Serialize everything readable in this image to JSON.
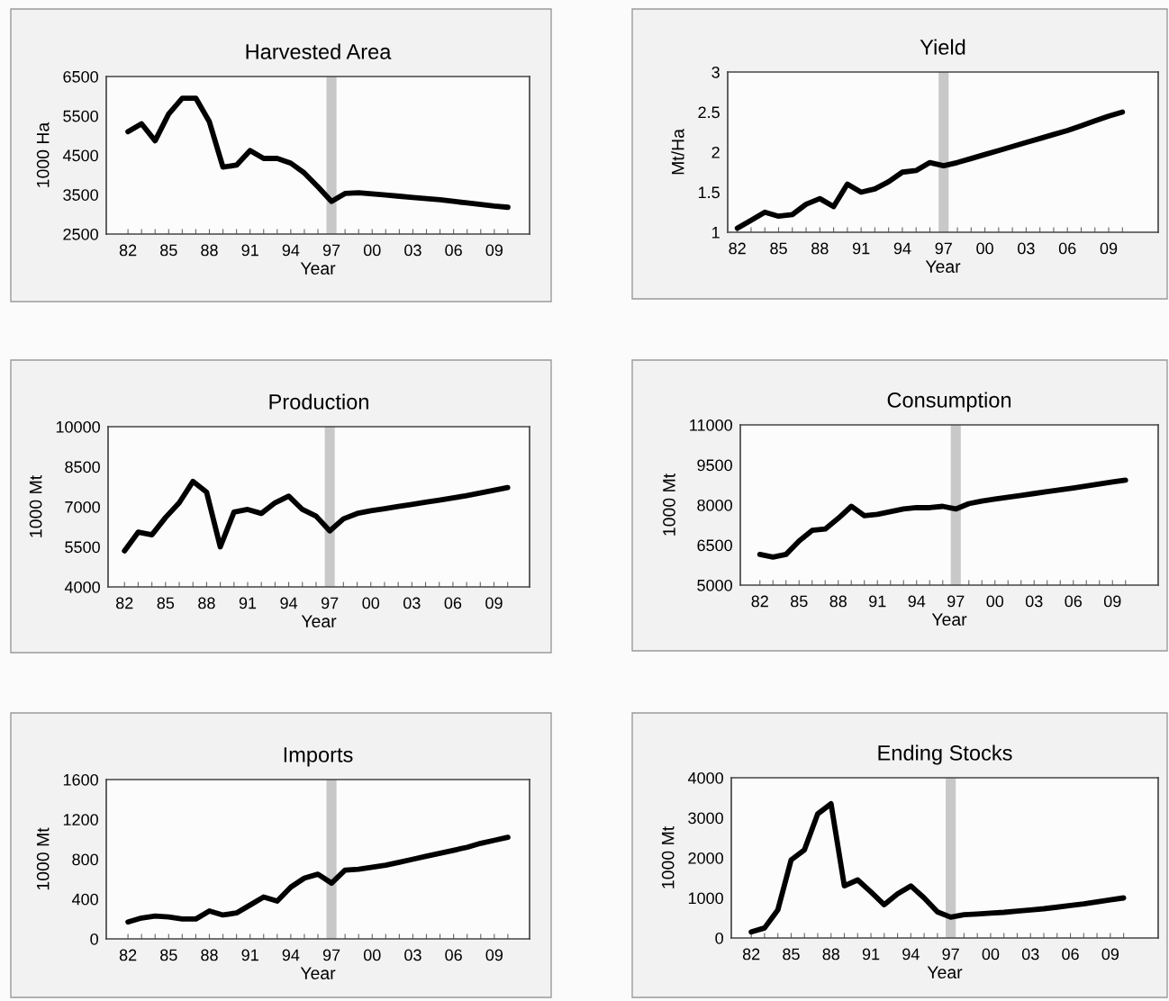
{
  "chart_data": [
    {
      "type": "line",
      "title": "Harvested Area",
      "xlabel": "Year",
      "ylabel": "1000 Ha",
      "x": [
        1982,
        1983,
        1984,
        1985,
        1986,
        1987,
        1988,
        1989,
        1990,
        1991,
        1992,
        1993,
        1994,
        1995,
        1996,
        1997,
        1998,
        1999,
        2000,
        2001,
        2002,
        2003,
        2004,
        2005,
        2006,
        2007,
        2008,
        2009,
        2010
      ],
      "series": [
        {
          "color": "#000000",
          "values": [
            5100,
            5300,
            4870,
            5550,
            5950,
            5950,
            5350,
            4200,
            4250,
            4620,
            4420,
            4420,
            4300,
            4050,
            3700,
            3330,
            3530,
            3550,
            3520,
            3490,
            3460,
            3430,
            3400,
            3370,
            3330,
            3290,
            3250,
            3210,
            3180
          ]
        }
      ],
      "xlim": [
        1980.4,
        2011.6
      ],
      "xticks": [
        {
          "value": 1982,
          "label": "82"
        },
        {
          "value": 1983,
          "label": null
        },
        {
          "value": 1984,
          "label": null
        },
        {
          "value": 1985,
          "label": "85"
        },
        {
          "value": 1986,
          "label": null
        },
        {
          "value": 1987,
          "label": null
        },
        {
          "value": 1988,
          "label": "88"
        },
        {
          "value": 1989,
          "label": null
        },
        {
          "value": 1990,
          "label": null
        },
        {
          "value": 1991,
          "label": "91"
        },
        {
          "value": 1992,
          "label": null
        },
        {
          "value": 1993,
          "label": null
        },
        {
          "value": 1994,
          "label": "94"
        },
        {
          "value": 1995,
          "label": null
        },
        {
          "value": 1996,
          "label": null
        },
        {
          "value": 1997,
          "label": "97"
        },
        {
          "value": 1998,
          "label": null
        },
        {
          "value": 1999,
          "label": null
        },
        {
          "value": 2000,
          "label": "00"
        },
        {
          "value": 2001,
          "label": null
        },
        {
          "value": 2002,
          "label": null
        },
        {
          "value": 2003,
          "label": "03"
        },
        {
          "value": 2004,
          "label": null
        },
        {
          "value": 2005,
          "label": null
        },
        {
          "value": 2006,
          "label": "06"
        },
        {
          "value": 2007,
          "label": null
        },
        {
          "value": 2008,
          "label": null
        },
        {
          "value": 2009,
          "label": "09"
        },
        {
          "value": 2010,
          "label": null
        }
      ],
      "ylim": [
        2500,
        6500
      ],
      "yticks": [
        2500,
        3500,
        4500,
        5500,
        6500
      ],
      "ref_lines": [
        {
          "axis": "x",
          "value": 1997,
          "color": "#c8c8c8"
        }
      ]
    },
    {
      "type": "line",
      "title": "Yield",
      "xlabel": "Year",
      "ylabel": "Mt/Ha",
      "x": [
        1982,
        1983,
        1984,
        1985,
        1986,
        1987,
        1988,
        1989,
        1990,
        1991,
        1992,
        1993,
        1994,
        1995,
        1996,
        1997,
        1998,
        1999,
        2000,
        2001,
        2002,
        2003,
        2004,
        2005,
        2006,
        2007,
        2008,
        2009,
        2010
      ],
      "series": [
        {
          "color": "#000000",
          "values": [
            1.05,
            1.15,
            1.25,
            1.2,
            1.22,
            1.35,
            1.42,
            1.32,
            1.6,
            1.5,
            1.54,
            1.63,
            1.75,
            1.77,
            1.87,
            1.83,
            1.87,
            1.92,
            1.97,
            2.02,
            2.07,
            2.12,
            2.17,
            2.22,
            2.27,
            2.33,
            2.39,
            2.45,
            2.5
          ]
        }
      ],
      "xlim": [
        1981.3,
        2012.6
      ],
      "xticks": [
        {
          "value": 1982,
          "label": "82"
        },
        {
          "value": 1983,
          "label": null
        },
        {
          "value": 1984,
          "label": null
        },
        {
          "value": 1985,
          "label": "85"
        },
        {
          "value": 1986,
          "label": null
        },
        {
          "value": 1987,
          "label": null
        },
        {
          "value": 1988,
          "label": "88"
        },
        {
          "value": 1989,
          "label": null
        },
        {
          "value": 1990,
          "label": null
        },
        {
          "value": 1991,
          "label": "91"
        },
        {
          "value": 1992,
          "label": null
        },
        {
          "value": 1993,
          "label": null
        },
        {
          "value": 1994,
          "label": "94"
        },
        {
          "value": 1995,
          "label": null
        },
        {
          "value": 1996,
          "label": null
        },
        {
          "value": 1997,
          "label": "97"
        },
        {
          "value": 1998,
          "label": null
        },
        {
          "value": 1999,
          "label": null
        },
        {
          "value": 2000,
          "label": "00"
        },
        {
          "value": 2001,
          "label": null
        },
        {
          "value": 2002,
          "label": null
        },
        {
          "value": 2003,
          "label": "03"
        },
        {
          "value": 2004,
          "label": null
        },
        {
          "value": 2005,
          "label": null
        },
        {
          "value": 2006,
          "label": "06"
        },
        {
          "value": 2007,
          "label": null
        },
        {
          "value": 2008,
          "label": null
        },
        {
          "value": 2009,
          "label": "09"
        },
        {
          "value": 2010,
          "label": null
        }
      ],
      "ylim": [
        1,
        3
      ],
      "yticks": [
        1,
        1.5,
        2,
        2.5,
        3
      ],
      "ref_lines": [
        {
          "axis": "x",
          "value": 1997,
          "color": "#c8c8c8"
        }
      ]
    },
    {
      "type": "line",
      "title": "Production",
      "xlabel": "Year",
      "ylabel": "1000 Mt",
      "x": [
        1982,
        1983,
        1984,
        1985,
        1986,
        1987,
        1988,
        1989,
        1990,
        1991,
        1992,
        1993,
        1994,
        1995,
        1996,
        1997,
        1998,
        1999,
        2000,
        2001,
        2002,
        2003,
        2004,
        2005,
        2006,
        2007,
        2008,
        2009,
        2010
      ],
      "series": [
        {
          "color": "#000000",
          "values": [
            5350,
            6050,
            5950,
            6600,
            7150,
            7950,
            7550,
            5500,
            6800,
            6900,
            6750,
            7150,
            7400,
            6900,
            6650,
            6100,
            6550,
            6750,
            6850,
            6930,
            7010,
            7090,
            7170,
            7250,
            7330,
            7420,
            7520,
            7620,
            7720
          ]
        }
      ],
      "xlim": [
        1980.8,
        2011.6
      ],
      "xticks": [
        {
          "value": 1982,
          "label": "82"
        },
        {
          "value": 1983,
          "label": null
        },
        {
          "value": 1984,
          "label": null
        },
        {
          "value": 1985,
          "label": "85"
        },
        {
          "value": 1986,
          "label": null
        },
        {
          "value": 1987,
          "label": null
        },
        {
          "value": 1988,
          "label": "88"
        },
        {
          "value": 1989,
          "label": null
        },
        {
          "value": 1990,
          "label": null
        },
        {
          "value": 1991,
          "label": "91"
        },
        {
          "value": 1992,
          "label": null
        },
        {
          "value": 1993,
          "label": null
        },
        {
          "value": 1994,
          "label": "94"
        },
        {
          "value": 1995,
          "label": null
        },
        {
          "value": 1996,
          "label": null
        },
        {
          "value": 1997,
          "label": "97"
        },
        {
          "value": 1998,
          "label": null
        },
        {
          "value": 1999,
          "label": null
        },
        {
          "value": 2000,
          "label": "00"
        },
        {
          "value": 2001,
          "label": null
        },
        {
          "value": 2002,
          "label": null
        },
        {
          "value": 2003,
          "label": "03"
        },
        {
          "value": 2004,
          "label": null
        },
        {
          "value": 2005,
          "label": null
        },
        {
          "value": 2006,
          "label": "06"
        },
        {
          "value": 2007,
          "label": null
        },
        {
          "value": 2008,
          "label": null
        },
        {
          "value": 2009,
          "label": "09"
        },
        {
          "value": 2010,
          "label": null
        }
      ],
      "ylim": [
        4000,
        10000
      ],
      "yticks": [
        4000,
        5500,
        7000,
        8500,
        10000
      ],
      "ref_lines": [
        {
          "axis": "x",
          "value": 1997,
          "color": "#c8c8c8"
        }
      ]
    },
    {
      "type": "line",
      "title": "Consumption",
      "xlabel": "Year",
      "ylabel": "1000 Mt",
      "x": [
        1982,
        1983,
        1984,
        1985,
        1986,
        1987,
        1988,
        1989,
        1990,
        1991,
        1992,
        1993,
        1994,
        1995,
        1996,
        1997,
        1998,
        1999,
        2000,
        2001,
        2002,
        2003,
        2004,
        2005,
        2006,
        2007,
        2008,
        2009,
        2010
      ],
      "series": [
        {
          "color": "#000000",
          "values": [
            6150,
            6050,
            6150,
            6650,
            7050,
            7100,
            7500,
            7950,
            7600,
            7650,
            7750,
            7850,
            7900,
            7900,
            7950,
            7850,
            8050,
            8150,
            8220,
            8290,
            8360,
            8430,
            8500,
            8570,
            8640,
            8710,
            8790,
            8860,
            8930
          ]
        }
      ],
      "xlim": [
        1980.5,
        2012.5
      ],
      "xticks": [
        {
          "value": 1982,
          "label": "82"
        },
        {
          "value": 1983,
          "label": null
        },
        {
          "value": 1984,
          "label": null
        },
        {
          "value": 1985,
          "label": "85"
        },
        {
          "value": 1986,
          "label": null
        },
        {
          "value": 1987,
          "label": null
        },
        {
          "value": 1988,
          "label": "88"
        },
        {
          "value": 1989,
          "label": null
        },
        {
          "value": 1990,
          "label": null
        },
        {
          "value": 1991,
          "label": "91"
        },
        {
          "value": 1992,
          "label": null
        },
        {
          "value": 1993,
          "label": null
        },
        {
          "value": 1994,
          "label": "94"
        },
        {
          "value": 1995,
          "label": null
        },
        {
          "value": 1996,
          "label": null
        },
        {
          "value": 1997,
          "label": "97"
        },
        {
          "value": 1998,
          "label": null
        },
        {
          "value": 1999,
          "label": null
        },
        {
          "value": 2000,
          "label": "00"
        },
        {
          "value": 2001,
          "label": null
        },
        {
          "value": 2002,
          "label": null
        },
        {
          "value": 2003,
          "label": "03"
        },
        {
          "value": 2004,
          "label": null
        },
        {
          "value": 2005,
          "label": null
        },
        {
          "value": 2006,
          "label": "06"
        },
        {
          "value": 2007,
          "label": null
        },
        {
          "value": 2008,
          "label": null
        },
        {
          "value": 2009,
          "label": "09"
        },
        {
          "value": 2010,
          "label": null
        }
      ],
      "ylim": [
        5000,
        11000
      ],
      "yticks": [
        5000,
        6500,
        8000,
        9500,
        11000
      ],
      "ref_lines": [
        {
          "axis": "x",
          "value": 1997,
          "color": "#c8c8c8"
        }
      ]
    },
    {
      "type": "line",
      "title": "Imports",
      "xlabel": "Year",
      "ylabel": "1000 Mt",
      "x": [
        1982,
        1983,
        1984,
        1985,
        1986,
        1987,
        1988,
        1989,
        1990,
        1991,
        1992,
        1993,
        1994,
        1995,
        1996,
        1997,
        1998,
        1999,
        2000,
        2001,
        2002,
        2003,
        2004,
        2005,
        2006,
        2007,
        2008,
        2009,
        2010
      ],
      "series": [
        {
          "color": "#000000",
          "values": [
            170,
            210,
            230,
            220,
            200,
            200,
            280,
            240,
            260,
            340,
            420,
            380,
            520,
            610,
            650,
            560,
            690,
            700,
            720,
            740,
            770,
            800,
            830,
            860,
            890,
            920,
            960,
            990,
            1020
          ]
        }
      ],
      "xlim": [
        1980.4,
        2011.6
      ],
      "xticks": [
        {
          "value": 1982,
          "label": "82"
        },
        {
          "value": 1983,
          "label": null
        },
        {
          "value": 1984,
          "label": null
        },
        {
          "value": 1985,
          "label": "85"
        },
        {
          "value": 1986,
          "label": null
        },
        {
          "value": 1987,
          "label": null
        },
        {
          "value": 1988,
          "label": "88"
        },
        {
          "value": 1989,
          "label": null
        },
        {
          "value": 1990,
          "label": null
        },
        {
          "value": 1991,
          "label": "91"
        },
        {
          "value": 1992,
          "label": null
        },
        {
          "value": 1993,
          "label": null
        },
        {
          "value": 1994,
          "label": "94"
        },
        {
          "value": 1995,
          "label": null
        },
        {
          "value": 1996,
          "label": null
        },
        {
          "value": 1997,
          "label": "97"
        },
        {
          "value": 1998,
          "label": null
        },
        {
          "value": 1999,
          "label": null
        },
        {
          "value": 2000,
          "label": "00"
        },
        {
          "value": 2001,
          "label": null
        },
        {
          "value": 2002,
          "label": null
        },
        {
          "value": 2003,
          "label": "03"
        },
        {
          "value": 2004,
          "label": null
        },
        {
          "value": 2005,
          "label": null
        },
        {
          "value": 2006,
          "label": "06"
        },
        {
          "value": 2007,
          "label": null
        },
        {
          "value": 2008,
          "label": null
        },
        {
          "value": 2009,
          "label": "09"
        },
        {
          "value": 2010,
          "label": null
        }
      ],
      "ylim": [
        0,
        1600
      ],
      "yticks": [
        0,
        400,
        800,
        1200,
        1600
      ],
      "ref_lines": [
        {
          "axis": "x",
          "value": 1997,
          "color": "#c8c8c8"
        }
      ]
    },
    {
      "type": "line",
      "title": "Ending Stocks",
      "xlabel": "Year",
      "ylabel": "1000 Mt",
      "x": [
        1982,
        1983,
        1984,
        1985,
        1986,
        1987,
        1988,
        1989,
        1990,
        1991,
        1992,
        1993,
        1994,
        1995,
        1996,
        1997,
        1998,
        1999,
        2000,
        2001,
        2002,
        2003,
        2004,
        2005,
        2006,
        2007,
        2008,
        2009,
        2010
      ],
      "series": [
        {
          "color": "#000000",
          "values": [
            150,
            250,
            700,
            1950,
            2200,
            3100,
            3350,
            1300,
            1450,
            1150,
            830,
            1100,
            1300,
            1000,
            650,
            520,
            580,
            600,
            620,
            640,
            670,
            700,
            730,
            770,
            810,
            850,
            900,
            950,
            1000
          ]
        }
      ],
      "xlim": [
        1980.5,
        2012.6
      ],
      "xticks": [
        {
          "value": 1982,
          "label": "82"
        },
        {
          "value": 1983,
          "label": null
        },
        {
          "value": 1984,
          "label": null
        },
        {
          "value": 1985,
          "label": "85"
        },
        {
          "value": 1986,
          "label": null
        },
        {
          "value": 1987,
          "label": null
        },
        {
          "value": 1988,
          "label": "88"
        },
        {
          "value": 1989,
          "label": null
        },
        {
          "value": 1990,
          "label": null
        },
        {
          "value": 1991,
          "label": "91"
        },
        {
          "value": 1992,
          "label": null
        },
        {
          "value": 1993,
          "label": null
        },
        {
          "value": 1994,
          "label": "94"
        },
        {
          "value": 1995,
          "label": null
        },
        {
          "value": 1996,
          "label": null
        },
        {
          "value": 1997,
          "label": "97"
        },
        {
          "value": 1998,
          "label": null
        },
        {
          "value": 1999,
          "label": null
        },
        {
          "value": 2000,
          "label": "00"
        },
        {
          "value": 2001,
          "label": null
        },
        {
          "value": 2002,
          "label": null
        },
        {
          "value": 2003,
          "label": "03"
        },
        {
          "value": 2004,
          "label": null
        },
        {
          "value": 2005,
          "label": null
        },
        {
          "value": 2006,
          "label": "06"
        },
        {
          "value": 2007,
          "label": null
        },
        {
          "value": 2008,
          "label": null
        },
        {
          "value": 2009,
          "label": "09"
        },
        {
          "value": 2010,
          "label": null
        }
      ],
      "ylim": [
        0,
        4000
      ],
      "yticks": [
        0,
        1000,
        2000,
        3000,
        4000
      ],
      "ref_lines": [
        {
          "axis": "x",
          "value": 1997,
          "color": "#c8c8c8"
        }
      ]
    }
  ]
}
